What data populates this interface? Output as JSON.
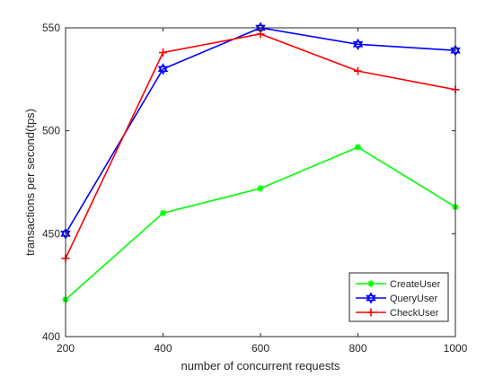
{
  "chart_data": {
    "type": "line",
    "title": "",
    "xlabel": "number of concurrent requests",
    "ylabel": "transactions per second(tps)",
    "x": [
      200,
      400,
      600,
      800,
      1000
    ],
    "xlim": [
      200,
      1000
    ],
    "ylim": [
      400,
      550
    ],
    "xticks": [
      "200",
      "400",
      "600",
      "800",
      "1000"
    ],
    "yticks": [
      "400",
      "450",
      "500",
      "550"
    ],
    "grid": false,
    "legend_position": "bottom-right",
    "series": [
      {
        "name": "CreateUser",
        "color": "#00ff00",
        "marker": "asterisk",
        "values": [
          418,
          460,
          472,
          492,
          463
        ]
      },
      {
        "name": "QueryUser",
        "color": "#0000ff",
        "marker": "hexagram",
        "values": [
          450,
          530,
          550,
          542,
          539
        ]
      },
      {
        "name": "CheckUser",
        "color": "#ff0000",
        "marker": "plus",
        "values": [
          438,
          538,
          547,
          529,
          520
        ]
      }
    ]
  }
}
